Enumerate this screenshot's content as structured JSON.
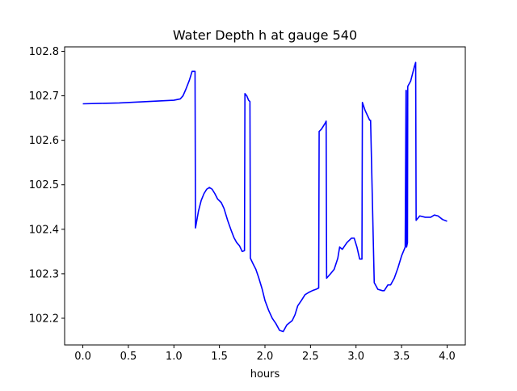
{
  "chart_data": {
    "type": "line",
    "title": "Water Depth h at gauge 540",
    "xlabel": "hours",
    "ylabel": "",
    "xlim": [
      -0.2,
      4.2
    ],
    "ylim": [
      102.14,
      102.81
    ],
    "xticks": [
      {
        "value": 0.0,
        "label": "0.0"
      },
      {
        "value": 0.5,
        "label": "0.5"
      },
      {
        "value": 1.0,
        "label": "1.0"
      },
      {
        "value": 1.5,
        "label": "1.5"
      },
      {
        "value": 2.0,
        "label": "2.0"
      },
      {
        "value": 2.5,
        "label": "2.5"
      },
      {
        "value": 3.0,
        "label": "3.0"
      },
      {
        "value": 3.5,
        "label": "3.5"
      },
      {
        "value": 4.0,
        "label": "4.0"
      }
    ],
    "yticks": [
      {
        "value": 102.2,
        "label": "102.2"
      },
      {
        "value": 102.3,
        "label": "102.3"
      },
      {
        "value": 102.4,
        "label": "102.4"
      },
      {
        "value": 102.5,
        "label": "102.5"
      },
      {
        "value": 102.6,
        "label": "102.6"
      },
      {
        "value": 102.7,
        "label": "102.7"
      },
      {
        "value": 102.8,
        "label": "102.8"
      }
    ],
    "grid": false,
    "legend": "none",
    "series": [
      {
        "color": "#0000ff",
        "x": [
          0.0,
          0.2,
          0.4,
          0.6,
          0.8,
          1.0,
          1.07,
          1.1,
          1.13,
          1.17,
          1.2,
          1.232,
          1.237,
          1.27,
          1.3,
          1.33,
          1.36,
          1.39,
          1.42,
          1.45,
          1.48,
          1.52,
          1.55,
          1.59,
          1.63,
          1.66,
          1.69,
          1.72,
          1.75,
          1.775,
          1.78,
          1.8,
          1.82,
          1.835,
          1.84,
          1.87,
          1.9,
          1.93,
          1.97,
          2.0,
          2.04,
          2.08,
          2.12,
          2.16,
          2.2,
          2.24,
          2.27,
          2.3,
          2.33,
          2.36,
          2.4,
          2.44,
          2.48,
          2.52,
          2.56,
          2.59,
          2.595,
          2.62,
          2.66,
          2.672,
          2.677,
          2.72,
          2.76,
          2.8,
          2.82,
          2.85,
          2.9,
          2.95,
          2.98,
          3.01,
          3.04,
          3.065,
          3.07,
          3.1,
          3.15,
          3.16,
          3.2,
          3.24,
          3.29,
          3.31,
          3.35,
          3.38,
          3.42,
          3.46,
          3.5,
          3.54,
          3.549,
          3.552,
          3.555,
          3.565,
          3.568,
          3.57,
          3.6,
          3.64,
          3.655,
          3.66,
          3.7,
          3.76,
          3.82,
          3.86,
          3.9,
          3.95,
          4.0
        ],
        "y": [
          102.682,
          102.683,
          102.684,
          102.686,
          102.688,
          102.69,
          102.693,
          102.7,
          102.714,
          102.735,
          102.755,
          102.755,
          102.403,
          102.441,
          102.465,
          102.48,
          102.49,
          102.494,
          102.49,
          102.48,
          102.468,
          102.46,
          102.447,
          102.42,
          102.397,
          102.381,
          102.37,
          102.363,
          102.35,
          102.352,
          102.705,
          102.7,
          102.69,
          102.687,
          102.335,
          102.322,
          102.31,
          102.292,
          102.265,
          102.24,
          102.218,
          102.2,
          102.188,
          102.173,
          102.17,
          102.185,
          102.19,
          102.195,
          102.208,
          102.228,
          102.24,
          102.253,
          102.258,
          102.262,
          102.265,
          102.268,
          102.62,
          102.625,
          102.638,
          102.643,
          102.29,
          102.3,
          102.31,
          102.335,
          102.36,
          102.355,
          102.37,
          102.38,
          102.38,
          102.36,
          102.333,
          102.333,
          102.685,
          102.667,
          102.645,
          102.645,
          102.28,
          102.265,
          102.262,
          102.262,
          102.275,
          102.275,
          102.29,
          102.313,
          102.34,
          102.36,
          102.712,
          102.712,
          102.36,
          102.37,
          102.72,
          102.722,
          102.733,
          102.765,
          102.775,
          102.42,
          102.43,
          102.427,
          102.427,
          102.432,
          102.43,
          102.422,
          102.418
        ]
      }
    ]
  }
}
